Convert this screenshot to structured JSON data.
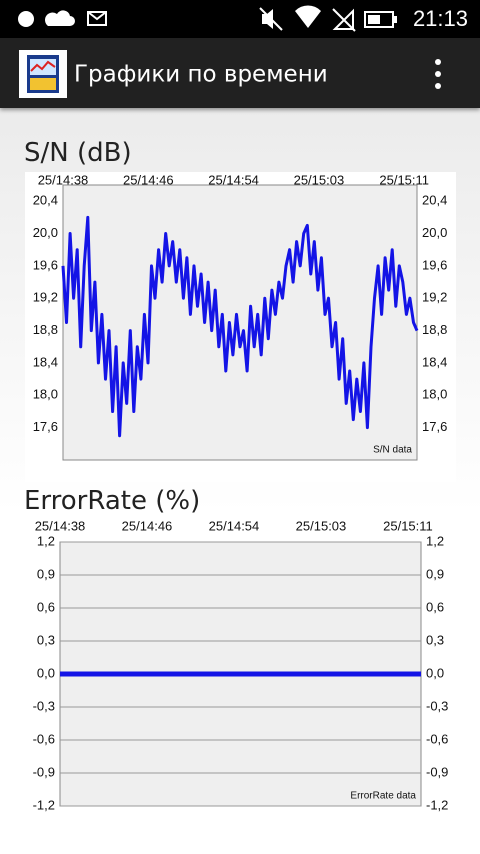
{
  "status_bar": {
    "time": "21:13"
  },
  "app_bar": {
    "title": "Графики по времени"
  },
  "chart_data": [
    {
      "type": "line",
      "title": "S/N (dB)",
      "grid": false,
      "xtick_labels": [
        "25/14:38",
        "25/14:46",
        "25/14:54",
        "25/15:03",
        "25/15:11"
      ],
      "series": [
        {
          "name": "S/N data",
          "color": "#1414e6",
          "values": [
            19.6,
            18.9,
            20.0,
            19.2,
            19.8,
            18.6,
            19.6,
            20.2,
            18.8,
            19.4,
            18.4,
            19.0,
            18.2,
            18.8,
            17.8,
            18.6,
            17.5,
            18.4,
            17.9,
            18.8,
            17.8,
            18.6,
            18.2,
            19.0,
            18.4,
            19.6,
            19.2,
            19.8,
            19.4,
            20.0,
            19.6,
            19.9,
            19.4,
            19.8,
            19.2,
            19.7,
            19.0,
            19.6,
            19.1,
            19.5,
            18.9,
            19.4,
            18.8,
            19.3,
            18.6,
            19.0,
            18.3,
            18.9,
            18.5,
            19.0,
            18.6,
            18.8,
            18.3,
            19.1,
            18.6,
            19.0,
            18.5,
            19.2,
            18.7,
            19.3,
            19.0,
            19.4,
            19.2,
            19.6,
            19.8,
            19.4,
            19.9,
            19.6,
            20.0,
            20.1,
            19.5,
            19.9,
            19.3,
            19.7,
            19.0,
            19.2,
            18.6,
            18.9,
            18.2,
            18.7,
            17.9,
            18.3,
            17.7,
            18.2,
            17.8,
            18.4,
            17.6,
            18.6,
            19.2,
            19.6,
            19.0,
            19.7,
            19.3,
            19.8,
            19.1,
            19.6,
            19.4,
            19.0,
            19.2,
            18.9,
            18.8
          ]
        }
      ],
      "ylim": [
        17.2,
        20.6
      ],
      "yticks": [
        {
          "value": 17.6,
          "label": "17,6"
        },
        {
          "value": 18.0,
          "label": "18,0"
        },
        {
          "value": 18.4,
          "label": "18,4"
        },
        {
          "value": 18.8,
          "label": "18,8"
        },
        {
          "value": 19.2,
          "label": "19,2"
        },
        {
          "value": 19.6,
          "label": "19,6"
        },
        {
          "value": 20.0,
          "label": "20,0"
        },
        {
          "value": 20.4,
          "label": "20,4"
        }
      ]
    },
    {
      "type": "line",
      "title": "ErrorRate (%)",
      "grid": true,
      "xtick_labels": [
        "25/14:38",
        "25/14:46",
        "25/14:54",
        "25/15:03",
        "25/15:11"
      ],
      "series": [
        {
          "name": "ErrorRate data",
          "color": "#1414e6",
          "values": [
            0,
            0,
            0,
            0,
            0,
            0,
            0,
            0,
            0,
            0,
            0,
            0,
            0,
            0,
            0,
            0,
            0,
            0,
            0,
            0,
            0,
            0,
            0,
            0,
            0,
            0,
            0,
            0,
            0,
            0
          ]
        }
      ],
      "ylim": [
        -1.2,
        1.2
      ],
      "yticks": [
        {
          "value": -1.2,
          "label": "-1,2"
        },
        {
          "value": -0.9,
          "label": "-0,9"
        },
        {
          "value": -0.6,
          "label": "-0,6"
        },
        {
          "value": -0.3,
          "label": "-0,3"
        },
        {
          "value": 0,
          "label": "0,0"
        },
        {
          "value": 0.3,
          "label": "0,3"
        },
        {
          "value": 0.6,
          "label": "0,6"
        },
        {
          "value": 0.9,
          "label": "0,9"
        },
        {
          "value": 1.2,
          "label": "1,2"
        }
      ]
    }
  ]
}
